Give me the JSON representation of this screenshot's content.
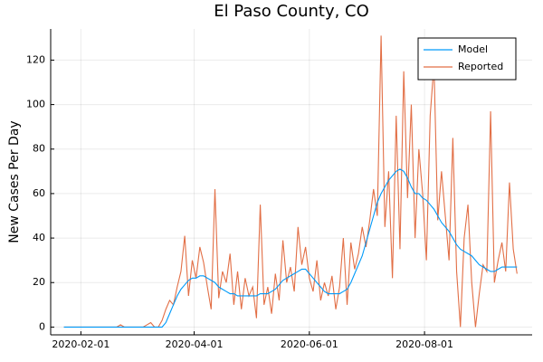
{
  "chart_data": {
    "type": "line",
    "title": "El Paso County, CO",
    "y_label": "New Cases Per Day",
    "x": [
      "2020-01-23",
      "2020-01-25",
      "2020-01-27",
      "2020-01-29",
      "2020-01-31",
      "2020-02-02",
      "2020-02-04",
      "2020-02-06",
      "2020-02-08",
      "2020-02-10",
      "2020-02-12",
      "2020-02-14",
      "2020-02-16",
      "2020-02-18",
      "2020-02-20",
      "2020-02-22",
      "2020-02-24",
      "2020-02-26",
      "2020-02-28",
      "2020-03-01",
      "2020-03-03",
      "2020-03-05",
      "2020-03-07",
      "2020-03-09",
      "2020-03-11",
      "2020-03-13",
      "2020-03-15",
      "2020-03-17",
      "2020-03-19",
      "2020-03-21",
      "2020-03-23",
      "2020-03-25",
      "2020-03-27",
      "2020-03-29",
      "2020-03-31",
      "2020-04-02",
      "2020-04-04",
      "2020-04-06",
      "2020-04-08",
      "2020-04-10",
      "2020-04-12",
      "2020-04-14",
      "2020-04-16",
      "2020-04-18",
      "2020-04-20",
      "2020-04-22",
      "2020-04-24",
      "2020-04-26",
      "2020-04-28",
      "2020-04-30",
      "2020-05-02",
      "2020-05-04",
      "2020-05-06",
      "2020-05-08",
      "2020-05-10",
      "2020-05-12",
      "2020-05-14",
      "2020-05-16",
      "2020-05-18",
      "2020-05-20",
      "2020-05-22",
      "2020-05-24",
      "2020-05-26",
      "2020-05-28",
      "2020-05-30",
      "2020-06-01",
      "2020-06-03",
      "2020-06-05",
      "2020-06-07",
      "2020-06-09",
      "2020-06-11",
      "2020-06-13",
      "2020-06-15",
      "2020-06-17",
      "2020-06-19",
      "2020-06-21",
      "2020-06-23",
      "2020-06-25",
      "2020-06-27",
      "2020-06-29",
      "2020-07-01",
      "2020-07-03",
      "2020-07-05",
      "2020-07-07",
      "2020-07-09",
      "2020-07-11",
      "2020-07-13",
      "2020-07-15",
      "2020-07-17",
      "2020-07-19",
      "2020-07-21",
      "2020-07-23",
      "2020-07-25",
      "2020-07-27",
      "2020-07-29",
      "2020-07-31",
      "2020-08-02",
      "2020-08-04",
      "2020-08-06",
      "2020-08-08",
      "2020-08-10",
      "2020-08-12",
      "2020-08-14",
      "2020-08-16",
      "2020-08-18",
      "2020-08-20",
      "2020-08-22",
      "2020-08-24",
      "2020-08-26",
      "2020-08-28",
      "2020-08-30",
      "2020-09-01",
      "2020-09-03",
      "2020-09-05",
      "2020-09-07",
      "2020-09-09",
      "2020-09-11",
      "2020-09-13",
      "2020-09-15",
      "2020-09-17",
      "2020-09-19"
    ],
    "series": [
      {
        "name": "Model",
        "color": "#009af9",
        "values": [
          0,
          0,
          0,
          0,
          0,
          0,
          0,
          0,
          0,
          0,
          0,
          0,
          0,
          0,
          0,
          0,
          0,
          0,
          0,
          0,
          0,
          0,
          0,
          0,
          0,
          0,
          0,
          2,
          6,
          10,
          14,
          17,
          19,
          21,
          22,
          22,
          23,
          23,
          22,
          21,
          20,
          18,
          17,
          16,
          15,
          15,
          14,
          14,
          14,
          14,
          14,
          14,
          15,
          15,
          15,
          16,
          17,
          19,
          21,
          22,
          23,
          24,
          25,
          26,
          26,
          24,
          22,
          20,
          18,
          16,
          15,
          15,
          15,
          15,
          16,
          17,
          20,
          24,
          28,
          32,
          38,
          44,
          50,
          56,
          60,
          63,
          66,
          68,
          70,
          71,
          70,
          67,
          63,
          60,
          60,
          58,
          57,
          55,
          53,
          50,
          47,
          45,
          43,
          40,
          37,
          35,
          34,
          33,
          32,
          30,
          28,
          27,
          26,
          25,
          25,
          26,
          27,
          27,
          27,
          27,
          27
        ]
      },
      {
        "name": "Reported",
        "color": "#e26f46",
        "values": [
          0,
          0,
          0,
          0,
          0,
          0,
          0,
          0,
          0,
          0,
          0,
          0,
          0,
          0,
          0,
          1,
          0,
          0,
          0,
          0,
          0,
          0,
          1,
          2,
          0,
          0,
          3,
          8,
          12,
          10,
          18,
          25,
          41,
          14,
          30,
          22,
          36,
          29,
          18,
          8,
          62,
          13,
          25,
          20,
          33,
          10,
          25,
          8,
          22,
          14,
          18,
          4,
          55,
          10,
          18,
          6,
          24,
          12,
          39,
          20,
          27,
          16,
          45,
          28,
          36,
          22,
          16,
          30,
          12,
          20,
          14,
          23,
          8,
          18,
          40,
          10,
          38,
          26,
          33,
          45,
          36,
          48,
          62,
          50,
          131,
          45,
          70,
          22,
          95,
          35,
          115,
          58,
          100,
          40,
          80,
          60,
          30,
          95,
          118,
          48,
          70,
          50,
          30,
          85,
          25,
          0,
          40,
          55,
          20,
          0,
          15,
          28,
          25,
          97,
          20,
          30,
          38,
          25,
          65,
          35,
          24
        ]
      }
    ],
    "xlim": [
      "2020-01-16",
      "2020-09-27"
    ],
    "xticks": [
      "2020-02-01",
      "2020-04-01",
      "2020-06-01",
      "2020-08-01"
    ],
    "ylim": [
      -3.5,
      134
    ],
    "yticks": [
      0,
      20,
      40,
      60,
      80,
      100,
      120
    ],
    "grid": true,
    "legend": "top-right"
  }
}
